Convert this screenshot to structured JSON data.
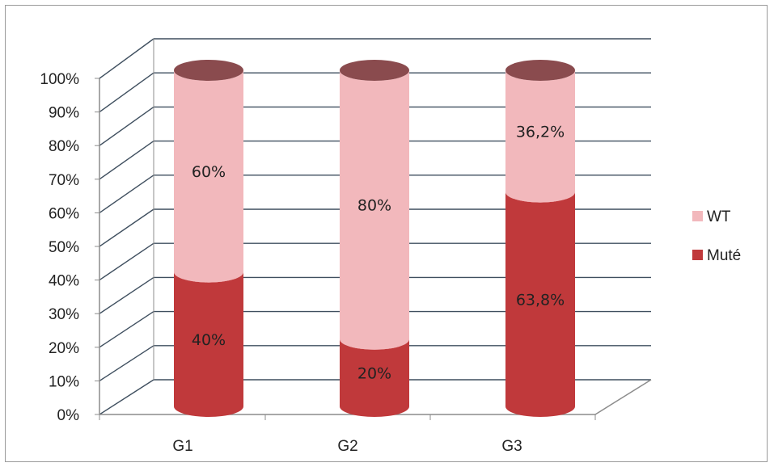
{
  "chart_data": {
    "type": "bar",
    "stacked": true,
    "percent_stacked": true,
    "style": "3d-cylinder",
    "title": "",
    "xlabel": "",
    "ylabel": "",
    "ylim": [
      0,
      100
    ],
    "y_tick_labels": [
      "0%",
      "10%",
      "20%",
      "30%",
      "40%",
      "50%",
      "60%",
      "70%",
      "80%",
      "90%",
      "100%"
    ],
    "categories": [
      "G1",
      "G2",
      "G3"
    ],
    "series": [
      {
        "name": "Muté",
        "values": [
          40,
          20,
          63.8
        ],
        "labels": [
          "40%",
          "20%",
          "63,8%"
        ],
        "color": "#c0393b",
        "top_color": "#d9504f"
      },
      {
        "name": "WT",
        "values": [
          60,
          80,
          36.2
        ],
        "labels": [
          "60%",
          "80%",
          "36,2%"
        ],
        "color": "#f2b8bc",
        "top_color": "#8a4b4e"
      }
    ],
    "legend_position": "right",
    "legend_order": [
      "WT",
      "Muté"
    ],
    "grid": true,
    "colors": {
      "gridline": "#3f4f5f",
      "axis": "#8c8c8c",
      "wall": "#ffffff"
    }
  }
}
